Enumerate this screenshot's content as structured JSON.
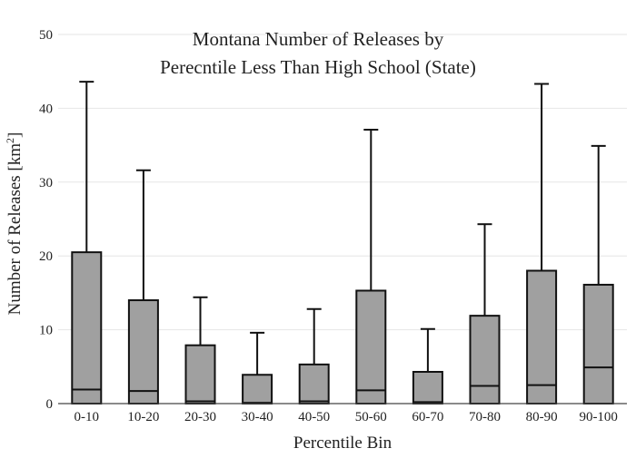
{
  "chart_data": {
    "type": "box",
    "title_lines": [
      "Montana Number of Releases by",
      "Perecntile Less Than High School (State)"
    ],
    "xlabel": "Percentile Bin",
    "ylabel": "Number of Releases  [km",
    "ylabel_sup": "2",
    "ylabel_close": "]",
    "ylim": [
      0,
      50
    ],
    "yticks": [
      0,
      10,
      20,
      30,
      40,
      50
    ],
    "grid": true,
    "categories": [
      "0-10",
      "10-20",
      "20-30",
      "30-40",
      "40-50",
      "50-60",
      "60-70",
      "70-80",
      "80-90",
      "90-100"
    ],
    "boxes": [
      {
        "min": 0,
        "q1": 0,
        "median": 1.9,
        "q3": 20.5,
        "max": 43.6
      },
      {
        "min": 0,
        "q1": 0,
        "median": 1.7,
        "q3": 14.0,
        "max": 31.6
      },
      {
        "min": 0,
        "q1": 0,
        "median": 0.3,
        "q3": 7.9,
        "max": 14.4
      },
      {
        "min": 0,
        "q1": 0,
        "median": 0.1,
        "q3": 3.9,
        "max": 9.6
      },
      {
        "min": 0,
        "q1": 0,
        "median": 0.3,
        "q3": 5.3,
        "max": 12.8
      },
      {
        "min": 0,
        "q1": 0,
        "median": 1.8,
        "q3": 15.3,
        "max": 37.1
      },
      {
        "min": 0,
        "q1": 0,
        "median": 0.2,
        "q3": 4.3,
        "max": 10.1
      },
      {
        "min": 0,
        "q1": 0,
        "median": 2.4,
        "q3": 11.9,
        "max": 24.3
      },
      {
        "min": 0,
        "q1": 0,
        "median": 2.5,
        "q3": 18.0,
        "max": 43.3
      },
      {
        "min": 0,
        "q1": 0,
        "median": 4.9,
        "q3": 16.1,
        "max": 34.9
      }
    ],
    "colors": {
      "box_fill": "#a0a0a0",
      "stroke": "#111111",
      "grid": "#e6e6e6",
      "axis": "#444444"
    }
  }
}
